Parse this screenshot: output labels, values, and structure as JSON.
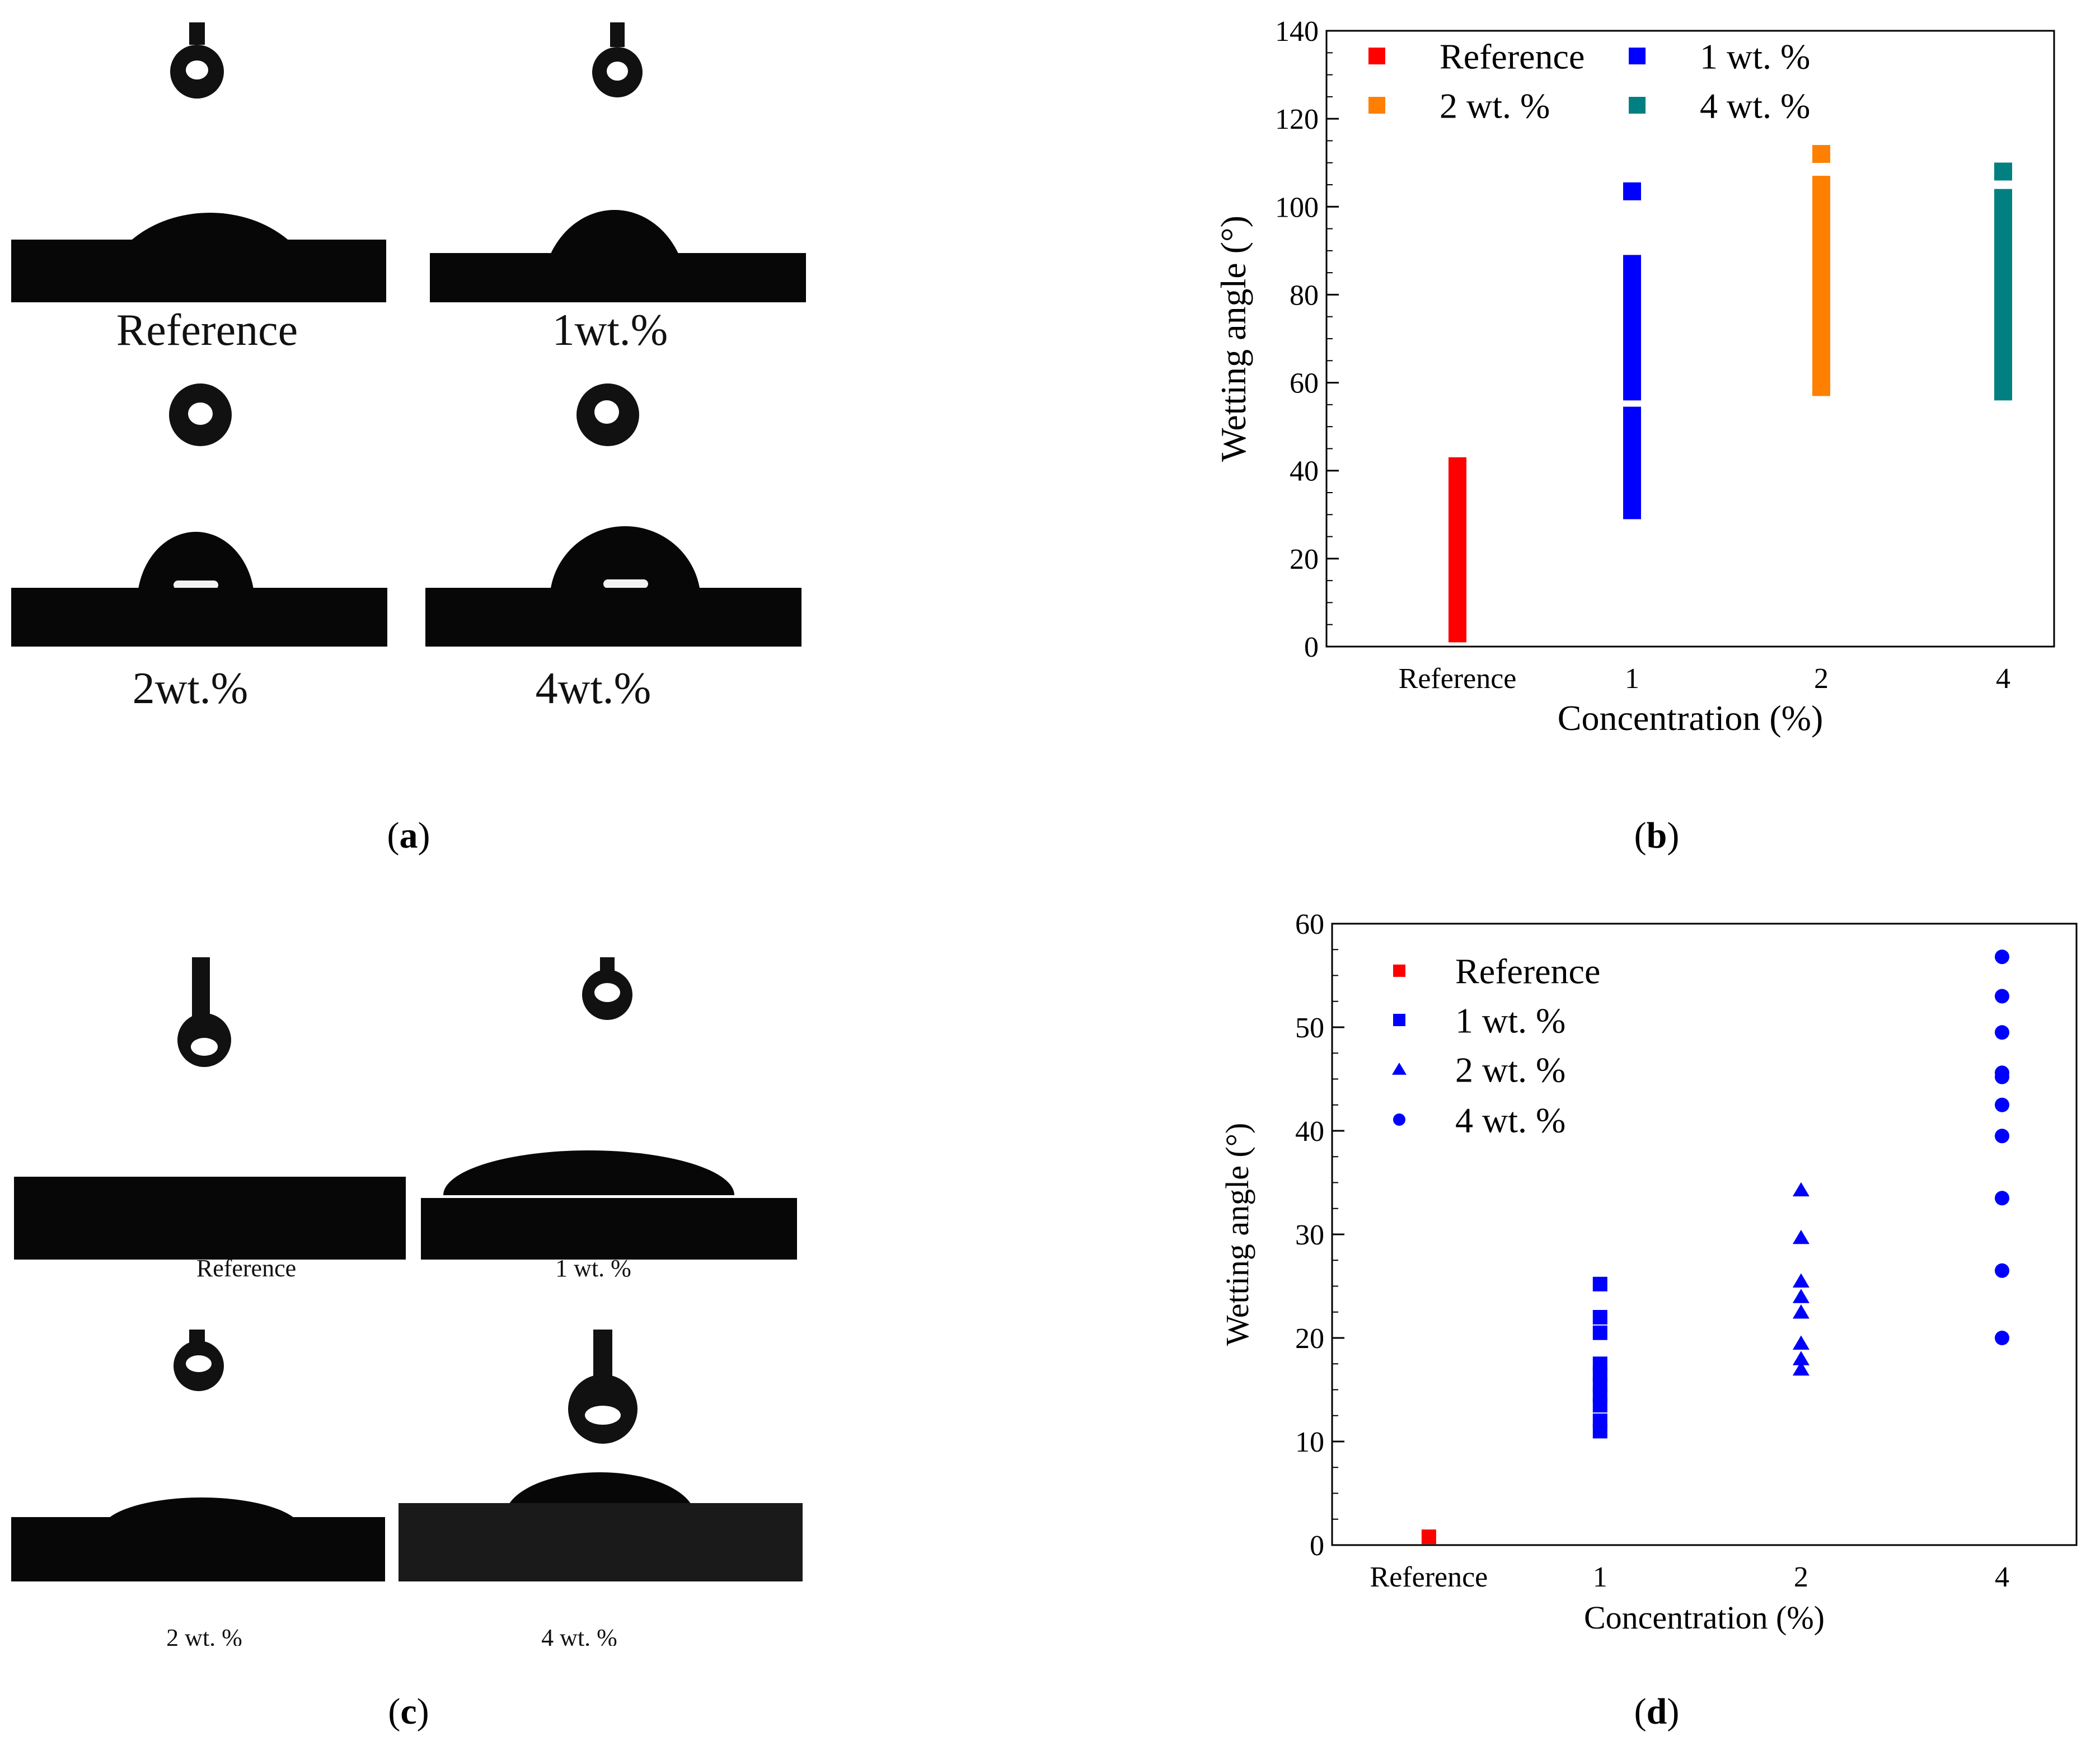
{
  "panels": {
    "a": {
      "label": "a",
      "images": [
        "Reference",
        "1wt.%",
        "2wt.%",
        "4wt.%"
      ]
    },
    "b": {
      "label": "b"
    },
    "c": {
      "label": "c",
      "images": [
        "Reference",
        "1 wt. %",
        "2 wt. %",
        "4 wt. %"
      ]
    },
    "d": {
      "label": "d"
    }
  },
  "chart_data": [
    {
      "id": "b",
      "type": "scatter",
      "xlabel": "Concentration (%)",
      "ylabel": "Wetting angle (°)",
      "categories": [
        "Reference",
        "1",
        "2",
        "4"
      ],
      "ylim": [
        0,
        140
      ],
      "yticks": [
        0,
        20,
        40,
        60,
        80,
        100,
        120,
        140
      ],
      "legend": "top-left, two columns",
      "series": [
        {
          "name": "Reference",
          "marker": "square",
          "color": "#ff0000",
          "category": "Reference",
          "values": [
            3,
            5,
            8,
            11,
            14,
            17,
            20,
            23,
            26,
            29,
            32,
            35,
            37.5,
            41
          ]
        },
        {
          "name": "1 wt. %",
          "marker": "square",
          "color": "#0000ff",
          "category": "1",
          "values": [
            31,
            34,
            37,
            40,
            43,
            46,
            49,
            52.5,
            58,
            61,
            64,
            67,
            70,
            73,
            76,
            79,
            82,
            85,
            87,
            103.5
          ]
        },
        {
          "name": "2 wt. %",
          "marker": "square",
          "color": "#ff8000",
          "category": "2",
          "values": [
            59,
            62,
            65,
            68,
            71,
            74,
            77,
            80,
            83,
            86,
            89,
            92,
            95,
            98,
            102,
            105,
            112
          ]
        },
        {
          "name": "4 wt. %",
          "marker": "square",
          "color": "#008080",
          "category": "4",
          "values": [
            58,
            61,
            64,
            67,
            70,
            73,
            76,
            79,
            82,
            85,
            88,
            91,
            94,
            97,
            100,
            102,
            108
          ]
        }
      ]
    },
    {
      "id": "d",
      "type": "scatter",
      "xlabel": "Concentration (%)",
      "ylabel": "Wetting angle (°)",
      "categories": [
        "Reference",
        "1",
        "2",
        "4"
      ],
      "ylim": [
        0,
        60
      ],
      "yticks": [
        0,
        10,
        20,
        30,
        40,
        50,
        60
      ],
      "legend": "top-left",
      "series": [
        {
          "name": "Reference",
          "marker": "square",
          "color": "#ff0000",
          "category": "Reference",
          "values": [
            0.8
          ]
        },
        {
          "name": "1 wt. %",
          "marker": "square",
          "color": "#0000ff",
          "category": "1",
          "values": [
            11,
            12,
            13.5,
            14.5,
            15.5,
            16.5,
            17.5,
            20.5,
            22,
            25.2
          ]
        },
        {
          "name": "2 wt. %",
          "marker": "triangle",
          "color": "#0000ff",
          "category": "2",
          "values": [
            17,
            18,
            19.5,
            22.5,
            24,
            25.5,
            29.7,
            34.3
          ]
        },
        {
          "name": "4 wt. %",
          "marker": "circle",
          "color": "#0000ff",
          "category": "4",
          "values": [
            20,
            26.5,
            33.5,
            39.5,
            42.5,
            45.2,
            45.6,
            49.5,
            53,
            56.8
          ]
        }
      ]
    }
  ]
}
